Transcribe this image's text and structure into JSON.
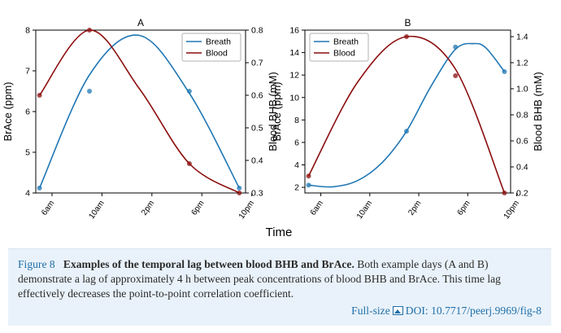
{
  "chart_data": [
    {
      "type": "line",
      "title": "A",
      "xlabel": "Time",
      "ylabel": "BrAce (ppm)",
      "ylabel_right": "Blood BHB (mM)",
      "x_ticks": [
        "6am",
        "10am",
        "2pm",
        "6pm",
        "10pm"
      ],
      "ylim": [
        4,
        8
      ],
      "y_ticks": [
        4,
        5,
        6,
        7,
        8
      ],
      "ylim_right": [
        0.3,
        0.8
      ],
      "y_ticks_right": [
        "0.3",
        "0.4",
        "0.5",
        "0.6",
        "0.7",
        "0.8"
      ],
      "legend": [
        "Breath",
        "Blood"
      ],
      "legend_position": "top-right",
      "series": [
        {
          "name": "Breath",
          "axis": "left",
          "color": "#1f77b4",
          "curve": {
            "x": [
              5.0,
              9.0,
              13.0,
              17.0,
              21.0
            ],
            "y": [
              4.12,
              6.9,
              7.87,
              6.45,
              4.12
            ]
          },
          "points": {
            "x": [
              5.0,
              9.0,
              17.0,
              21.0
            ],
            "y": [
              4.12,
              6.5,
              6.5,
              4.12
            ]
          }
        },
        {
          "name": "Blood",
          "axis": "right",
          "color": "#8b0e0e",
          "curve": {
            "x": [
              5.0,
              9.0,
              13.0,
              17.0,
              21.0
            ],
            "y": [
              0.6,
              0.8,
              0.62,
              0.39,
              0.3
            ]
          },
          "points": {
            "x": [
              5.0,
              9.0,
              17.0,
              21.0
            ],
            "y": [
              0.6,
              0.8,
              0.39,
              0.3
            ]
          }
        }
      ]
    },
    {
      "type": "line",
      "title": "B",
      "xlabel": "Time",
      "ylabel": "BrAce (ppm)",
      "ylabel_right": "Blood BHB (mM)",
      "x_ticks": [
        "6am",
        "10am",
        "2pm",
        "6pm",
        "10pm"
      ],
      "ylim": [
        1.5,
        16
      ],
      "y_ticks": [
        2,
        4,
        6,
        8,
        10,
        12,
        14,
        16
      ],
      "ylim_right": [
        0.2,
        1.45
      ],
      "y_ticks_right": [
        "0.2",
        "0.4",
        "0.6",
        "0.8",
        "1.0",
        "1.2",
        "1.4"
      ],
      "legend": [
        "Breath",
        "Blood"
      ],
      "legend_position": "top-left",
      "series": [
        {
          "name": "Breath",
          "axis": "left",
          "color": "#1f77b4",
          "curve": {
            "x": [
              5.0,
              7.0,
              9.0,
              11.0,
              13.0,
              15.0,
              17.0,
              18.5,
              19.5,
              21.0
            ],
            "y": [
              2.2,
              2.05,
              2.6,
              4.2,
              7.0,
              11.0,
              14.3,
              14.8,
              14.4,
              12.3
            ]
          },
          "points": {
            "x": [
              5.0,
              13.0,
              17.0,
              21.0
            ],
            "y": [
              2.2,
              7.0,
              14.5,
              12.3
            ]
          }
        },
        {
          "name": "Blood",
          "axis": "right",
          "color": "#8b0e0e",
          "curve": {
            "x": [
              5.0,
              9.0,
              13.0,
              17.0,
              21.0
            ],
            "y": [
              0.33,
              1.05,
              1.4,
              1.15,
              0.2
            ]
          },
          "points": {
            "x": [
              5.0,
              13.0,
              17.0,
              21.0
            ],
            "y": [
              0.33,
              1.4,
              1.1,
              0.2
            ]
          }
        }
      ]
    }
  ],
  "caption": {
    "label": "Figure 8",
    "title": "Examples of the temporal lag between blood BHB and BrAce.",
    "text": "Both example days (A and B) demonstrate a lag of approximately 4 h between peak concentrations of blood BHB and BrAce. This time lag effectively decreases the point-to-point correlation coefficient.",
    "fullsize_label": "Full-size",
    "doi": "DOI: 10.7717/peerj.9969/fig-8"
  }
}
